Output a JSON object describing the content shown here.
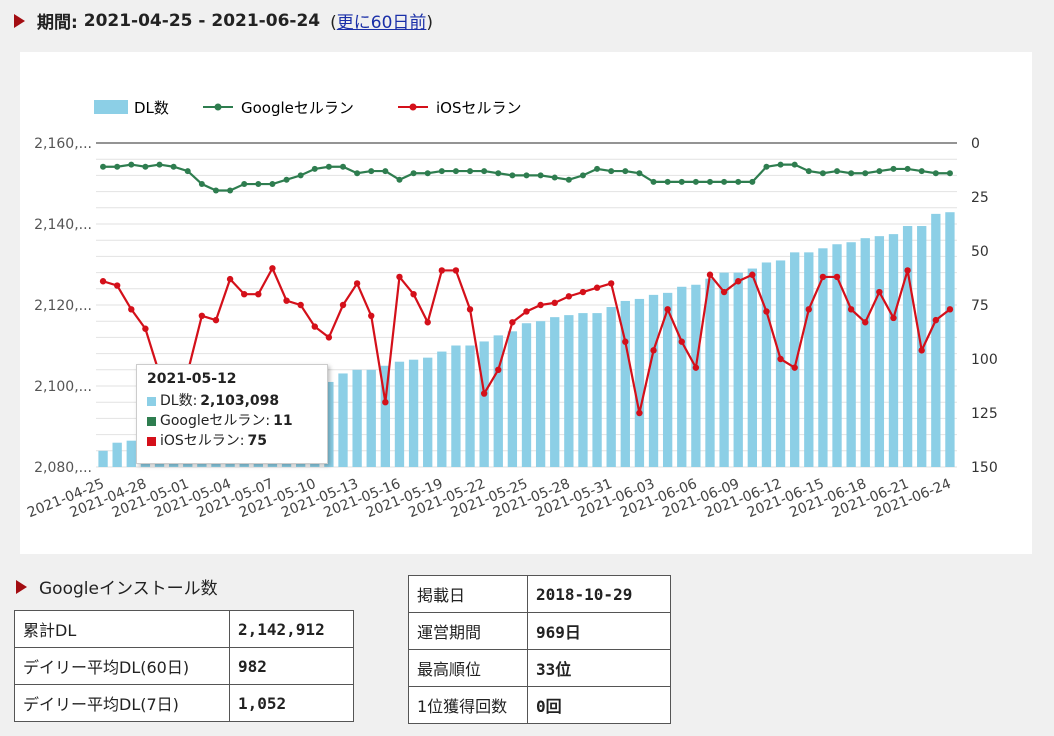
{
  "header": {
    "label": "期間:",
    "range": "2021-04-25 - 2021-06-24",
    "paren_open": "(",
    "link": "更に60日前",
    "paren_close": ")"
  },
  "legend": {
    "dl": "DL数",
    "google": "Googleセルラン",
    "ios": "iOSセルラン"
  },
  "colors": {
    "bar": "#8ccfe6",
    "google": "#2e7d4f",
    "ios": "#d4101a",
    "accent": "#a30d12"
  },
  "chart_data": {
    "type": "bar+line",
    "dates": [
      "2021-04-25",
      "2021-04-26",
      "2021-04-27",
      "2021-04-28",
      "2021-04-29",
      "2021-04-30",
      "2021-05-01",
      "2021-05-02",
      "2021-05-03",
      "2021-05-04",
      "2021-05-05",
      "2021-05-06",
      "2021-05-07",
      "2021-05-08",
      "2021-05-09",
      "2021-05-10",
      "2021-05-11",
      "2021-05-12",
      "2021-05-13",
      "2021-05-14",
      "2021-05-15",
      "2021-05-16",
      "2021-05-17",
      "2021-05-18",
      "2021-05-19",
      "2021-05-20",
      "2021-05-21",
      "2021-05-22",
      "2021-05-23",
      "2021-05-24",
      "2021-05-25",
      "2021-05-26",
      "2021-05-27",
      "2021-05-28",
      "2021-05-29",
      "2021-05-30",
      "2021-05-31",
      "2021-06-01",
      "2021-06-02",
      "2021-06-03",
      "2021-06-04",
      "2021-06-05",
      "2021-06-06",
      "2021-06-07",
      "2021-06-08",
      "2021-06-09",
      "2021-06-10",
      "2021-06-11",
      "2021-06-12",
      "2021-06-13",
      "2021-06-14",
      "2021-06-15",
      "2021-06-16",
      "2021-06-17",
      "2021-06-18",
      "2021-06-19",
      "2021-06-20",
      "2021-06-21",
      "2021-06-22",
      "2021-06-23",
      "2021-06-24"
    ],
    "x_tick_labels": [
      "2021-04-25",
      "2021-04-28",
      "2021-05-01",
      "2021-05-04",
      "2021-05-07",
      "2021-05-10",
      "2021-05-13",
      "2021-05-16",
      "2021-05-19",
      "2021-05-22",
      "2021-05-25",
      "2021-05-28",
      "2021-05-31",
      "2021-06-03",
      "2021-06-06",
      "2021-06-09",
      "2021-06-12",
      "2021-06-15",
      "2021-06-18",
      "2021-06-21",
      "2021-06-24"
    ],
    "left_axis": {
      "ticks": [
        "2,160,...",
        "2,140,...",
        "2,120,...",
        "2,100,...",
        "2,080,..."
      ],
      "ylim": [
        2080000,
        2160000
      ]
    },
    "right_axis": {
      "ticks": [
        "0",
        "25",
        "50",
        "75",
        "100",
        "125",
        "150"
      ],
      "ylim": [
        0,
        150
      ],
      "reversed": true
    },
    "dl": [
      2084000,
      2086000,
      2086500,
      2087000,
      2088000,
      2089000,
      2090000,
      2091000,
      2092500,
      2093500,
      2094500,
      2095500,
      2096500,
      2097500,
      2098500,
      2099500,
      2101000,
      2103098,
      2104000,
      2104000,
      2105000,
      2106000,
      2106500,
      2107000,
      2108500,
      2110000,
      2110000,
      2111000,
      2112500,
      2113500,
      2115500,
      2116000,
      2117000,
      2117500,
      2118000,
      2118000,
      2119500,
      2121000,
      2121500,
      2122500,
      2123000,
      2124500,
      2125000,
      2126500,
      2128000,
      2128000,
      2129000,
      2130500,
      2131000,
      2133000,
      2133000,
      2134000,
      2135000,
      2135500,
      2136500,
      2137000,
      2137500,
      2139500,
      2139500,
      2142500,
      2142912
    ],
    "google": [
      11,
      11,
      10,
      11,
      10,
      11,
      13,
      19,
      22,
      22,
      19,
      19,
      19,
      17,
      15,
      12,
      11,
      11,
      14,
      13,
      13,
      17,
      14,
      14,
      13,
      13,
      13,
      13,
      14,
      15,
      15,
      15,
      16,
      17,
      15,
      12,
      13,
      13,
      14,
      18,
      18,
      18,
      18,
      18,
      18,
      18,
      18,
      11,
      10,
      10,
      13,
      14,
      13,
      14,
      14,
      13,
      12,
      12,
      13,
      14,
      14
    ],
    "ios": [
      64,
      66,
      77,
      86,
      107,
      130,
      106,
      80,
      82,
      63,
      70,
      70,
      58,
      73,
      75,
      85,
      90,
      75,
      65,
      80,
      120,
      62,
      70,
      83,
      59,
      59,
      77,
      116,
      105,
      83,
      78,
      75,
      74,
      71,
      69,
      67,
      65,
      92,
      125,
      96,
      77,
      92,
      104,
      61,
      69,
      64,
      61,
      78,
      100,
      104,
      77,
      62,
      62,
      77,
      83,
      69,
      81,
      59,
      96,
      82,
      77
    ]
  },
  "tooltip": {
    "date": "2021-05-12",
    "dl_label": "DL数:",
    "dl_value": "2,103,098",
    "google_label": "Googleセルラン:",
    "google_value": "11",
    "ios_label": "iOSセルラン:",
    "ios_value": "75"
  },
  "google_stats": {
    "title": "Googleインストール数",
    "rows": [
      {
        "label": "累計DL",
        "value": "2,142,912"
      },
      {
        "label": "デイリー平均DL(60日)",
        "value": "982"
      },
      {
        "label": "デイリー平均DL(7日)",
        "value": "1,052"
      }
    ]
  },
  "app_stats": {
    "rows": [
      {
        "label": "掲載日",
        "value": "2018-10-29"
      },
      {
        "label": "運営期間",
        "value": "969日"
      },
      {
        "label": "最高順位",
        "value": "33位"
      },
      {
        "label": "1位獲得回数",
        "value": "0回"
      }
    ]
  }
}
